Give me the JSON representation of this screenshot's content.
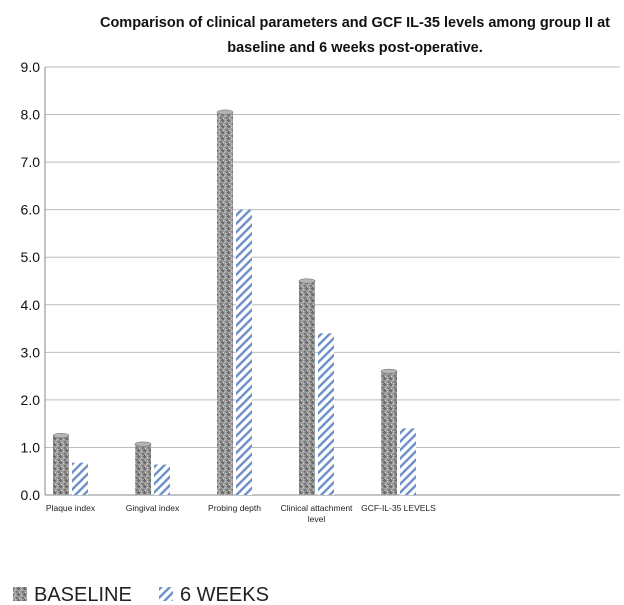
{
  "chart_data": {
    "type": "bar",
    "title": "Comparison of clinical parameters and GCF IL-35 levels among group II at baseline and 6 weeks post-operative.",
    "title_lines": [
      "Comparison of clinical parameters and GCF IL-35 levels among group II at",
      "baseline and 6 weeks post-operative."
    ],
    "categories": [
      [
        "Plaque index"
      ],
      [
        "Gingival index"
      ],
      [
        "Probing depth"
      ],
      [
        "Clinical attachment",
        "level"
      ],
      [
        "GCF-IL-35 LEVELS"
      ]
    ],
    "series": [
      {
        "name": "BASELINE",
        "values": [
          1.25,
          1.07,
          8.05,
          4.5,
          2.6
        ],
        "color": "#8c8c8c",
        "pattern": "granite"
      },
      {
        "name": "6 WEEKS",
        "values": [
          0.68,
          0.64,
          6.0,
          3.4,
          1.4
        ],
        "color": "#6b8fc7",
        "pattern": "diagonal-stripes"
      }
    ],
    "ylim": [
      0,
      9
    ],
    "yticks": [
      "0.0",
      "1.0",
      "2.0",
      "3.0",
      "4.0",
      "5.0",
      "6.0",
      "7.0",
      "8.0",
      "9.0"
    ],
    "xlabel": "",
    "ylabel": "",
    "grid": "horizontal",
    "legend": "bottom-left"
  }
}
